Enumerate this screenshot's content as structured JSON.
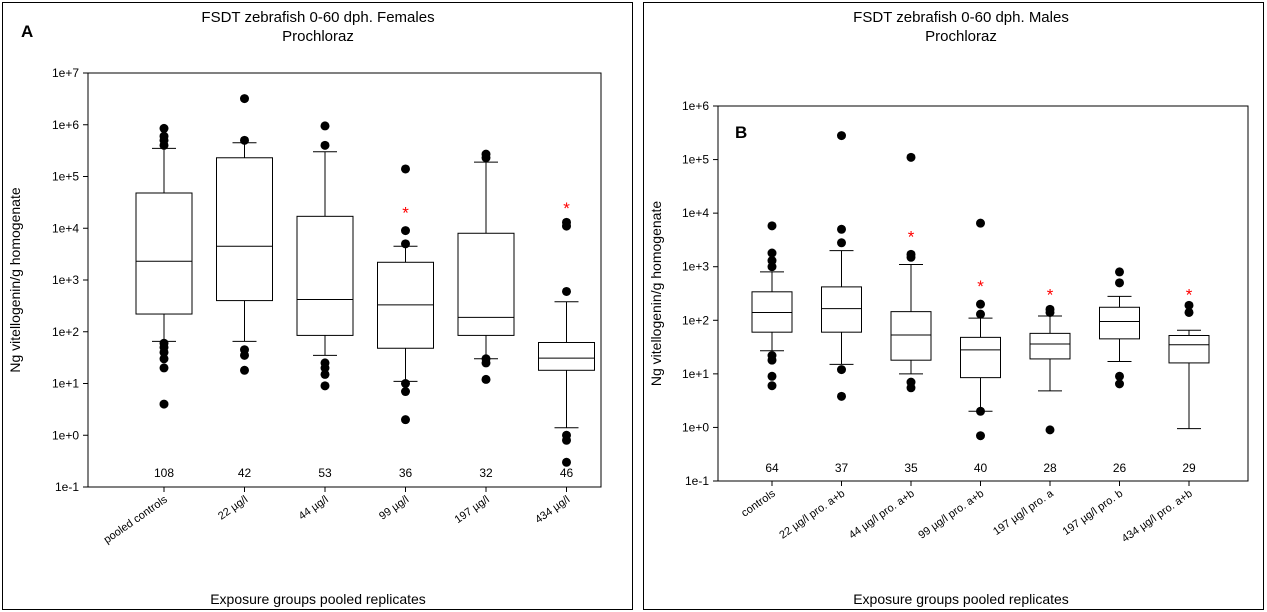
{
  "chart_data": [
    {
      "type": "box",
      "panel_label": "A",
      "title_line1": "FSDT zebrafish 0-60 dph. Females",
      "title_line2": "Prochloraz",
      "xlabel": "Exposure groups pooled replicates",
      "ylabel": "Ng vitellogenin/g homogenate",
      "y_scale": "log",
      "ylim": [
        0.1,
        10000000
      ],
      "y_ticks": [
        "1e-1",
        "1e+0",
        "1e+1",
        "1e+2",
        "1e+3",
        "1e+4",
        "1e+5",
        "1e+6",
        "1e+7"
      ],
      "significance_mark": "*",
      "significance_color": "#ff0000",
      "categories": [
        "pooled controls",
        "22 µg/l",
        "44 µg/l",
        "99 µg/l",
        "197 µg/l",
        "434 µg/l"
      ],
      "n_labels": [
        "108",
        "42",
        "53",
        "36",
        "32",
        "46"
      ],
      "boxes": [
        {
          "q1": 220,
          "median": 2300,
          "q3": 48000,
          "whisker_low": 65,
          "whisker_high": 350000,
          "outliers": [
            4,
            20,
            30,
            40,
            50,
            60,
            400000,
            500000,
            600000,
            850000
          ],
          "significant": false
        },
        {
          "q1": 400,
          "median": 4500,
          "q3": 230000,
          "whisker_low": 65,
          "whisker_high": 450000,
          "outliers": [
            18,
            35,
            45,
            500000,
            3200000
          ],
          "significant": false
        },
        {
          "q1": 85,
          "median": 420,
          "q3": 17000,
          "whisker_low": 35,
          "whisker_high": 300000,
          "outliers": [
            9,
            15,
            20,
            25,
            400000,
            950000
          ],
          "significant": false
        },
        {
          "q1": 48,
          "median": 330,
          "q3": 2200,
          "whisker_low": 11,
          "whisker_high": 4500,
          "outliers": [
            2,
            7,
            10,
            5000,
            9000,
            140000
          ],
          "significant": true
        },
        {
          "q1": 85,
          "median": 190,
          "q3": 8000,
          "whisker_low": 30,
          "whisker_high": 190000,
          "outliers": [
            12,
            25,
            30,
            230000,
            270000
          ],
          "significant": false
        },
        {
          "q1": 18,
          "median": 31,
          "q3": 62,
          "whisker_low": 1.4,
          "whisker_high": 380,
          "outliers": [
            0.3,
            0.8,
            1,
            600,
            11000,
            13000
          ],
          "significant": true
        }
      ]
    },
    {
      "type": "box",
      "panel_label": "B",
      "title_line1": "FSDT zebrafish 0-60 dph. Males",
      "title_line2": "Prochloraz",
      "xlabel": "Exposure groups pooled replicates",
      "ylabel": "Ng vitellogenin/g homogenate",
      "y_scale": "log",
      "ylim": [
        0.1,
        1000000
      ],
      "y_ticks": [
        "1e-1",
        "1e+0",
        "1e+1",
        "1e+2",
        "1e+3",
        "1e+4",
        "1e+5",
        "1e+6"
      ],
      "significance_mark": "*",
      "significance_color": "#ff0000",
      "categories": [
        "controls",
        "22 µg/l pro. a+b",
        "44 µg/l pro. a+b",
        "99 µg/l pro. a+b",
        "197 µg/l pro. a",
        "197 µg/l pro. b",
        "434 µg/l pro. a+b"
      ],
      "n_labels": [
        "64",
        "37",
        "35",
        "40",
        "28",
        "26",
        "29"
      ],
      "boxes": [
        {
          "q1": 60,
          "median": 140,
          "q3": 340,
          "whisker_low": 27,
          "whisker_high": 800,
          "outliers": [
            6,
            9,
            18,
            22,
            1000,
            1300,
            1800,
            5800
          ],
          "significant": false
        },
        {
          "q1": 60,
          "median": 165,
          "q3": 420,
          "whisker_low": 15,
          "whisker_high": 2000,
          "outliers": [
            3.8,
            12,
            2800,
            5000,
            280000
          ],
          "significant": false
        },
        {
          "q1": 18,
          "median": 53,
          "q3": 145,
          "whisker_low": 10,
          "whisker_high": 1100,
          "outliers": [
            5.5,
            7,
            1500,
            1700,
            110000
          ],
          "significant": true
        },
        {
          "q1": 8.5,
          "median": 28,
          "q3": 48,
          "whisker_low": 2,
          "whisker_high": 110,
          "outliers": [
            0.7,
            2,
            130,
            200,
            6500
          ],
          "significant": true
        },
        {
          "q1": 19,
          "median": 36,
          "q3": 57,
          "whisker_low": 4.8,
          "whisker_high": 120,
          "outliers": [
            0.9,
            140,
            160
          ],
          "significant": true
        },
        {
          "q1": 45,
          "median": 95,
          "q3": 175,
          "whisker_low": 17,
          "whisker_high": 280,
          "outliers": [
            6.5,
            9,
            500,
            800
          ],
          "significant": false
        },
        {
          "q1": 16,
          "median": 35,
          "q3": 52,
          "whisker_low": 0.95,
          "whisker_high": 65,
          "outliers": [
            140,
            190
          ],
          "significant": true
        }
      ]
    }
  ]
}
